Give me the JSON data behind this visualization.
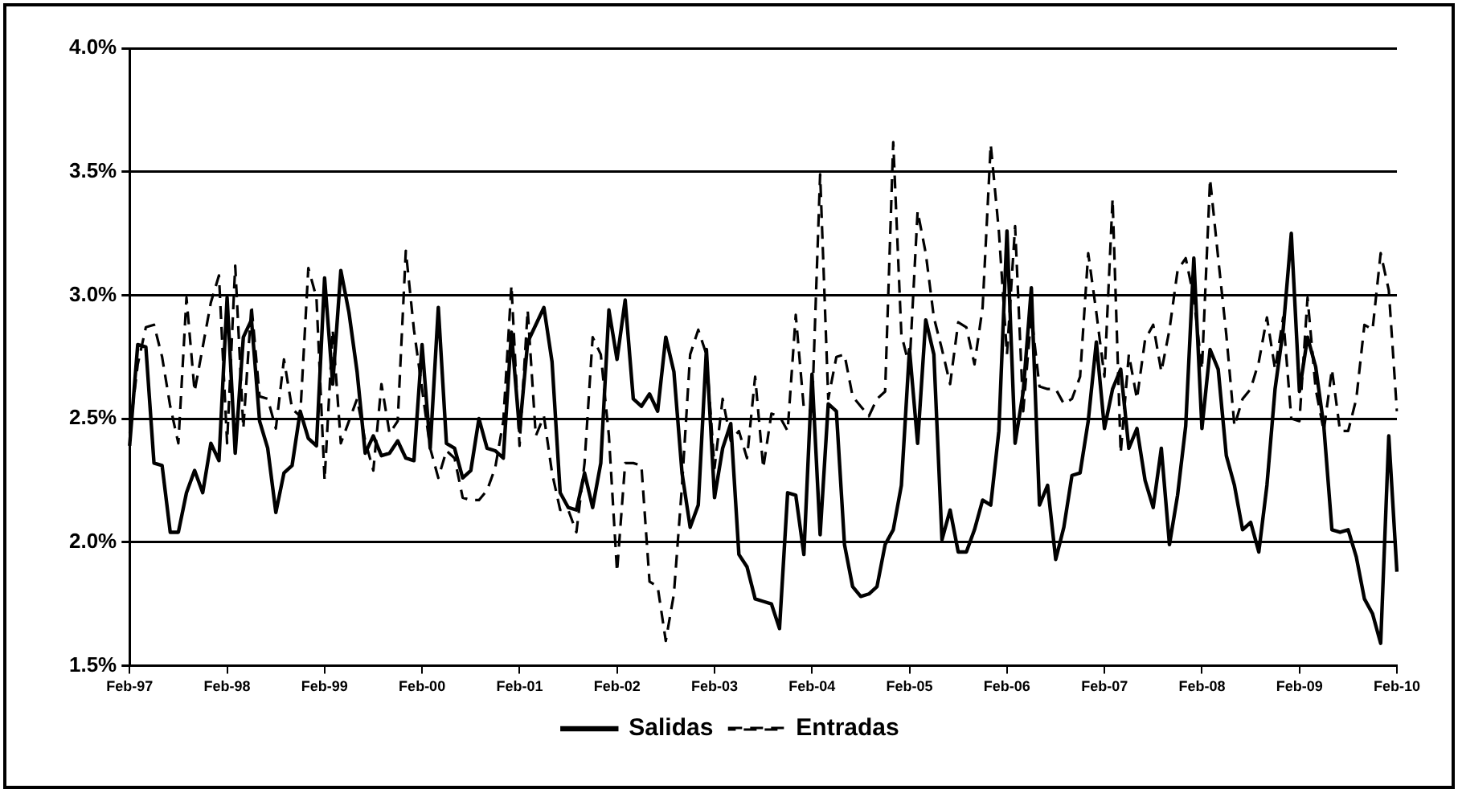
{
  "chart_data": {
    "type": "line",
    "categories": [
      "Feb-97",
      null,
      null,
      null,
      null,
      null,
      null,
      null,
      null,
      null,
      null,
      null,
      "Feb-98",
      null,
      null,
      null,
      null,
      null,
      null,
      null,
      null,
      null,
      null,
      null,
      "Feb-99",
      null,
      null,
      null,
      null,
      null,
      null,
      null,
      null,
      null,
      null,
      null,
      "Feb-00",
      null,
      null,
      null,
      null,
      null,
      null,
      null,
      null,
      null,
      null,
      null,
      "Feb-01",
      null,
      null,
      null,
      null,
      null,
      null,
      null,
      null,
      null,
      null,
      null,
      "Feb-02",
      null,
      null,
      null,
      null,
      null,
      null,
      null,
      null,
      null,
      null,
      null,
      "Feb-03",
      null,
      null,
      null,
      null,
      null,
      null,
      null,
      null,
      null,
      null,
      null,
      "Feb-04",
      null,
      null,
      null,
      null,
      null,
      null,
      null,
      null,
      null,
      null,
      null,
      "Feb-05",
      null,
      null,
      null,
      null,
      null,
      null,
      null,
      null,
      null,
      null,
      null,
      "Feb-06",
      null,
      null,
      null,
      null,
      null,
      null,
      null,
      null,
      null,
      null,
      null,
      "Feb-07",
      null,
      null,
      null,
      null,
      null,
      null,
      null,
      null,
      null,
      null,
      null,
      "Feb-08",
      null,
      null,
      null,
      null,
      null,
      null,
      null,
      null,
      null,
      null,
      null,
      "Feb-09",
      null,
      null,
      null,
      null,
      null,
      null,
      null,
      null,
      null,
      null,
      null,
      "Feb-10"
    ],
    "series": [
      {
        "name": "Salidas",
        "color": "#000000",
        "line_style": "solid",
        "values": [
          2.39,
          2.8,
          2.79,
          2.32,
          2.31,
          2.04,
          2.04,
          2.2,
          2.29,
          2.2,
          2.4,
          2.33,
          2.99,
          2.36,
          2.83,
          2.9,
          2.49,
          2.38,
          2.12,
          2.28,
          2.31,
          2.53,
          2.42,
          2.39,
          3.07,
          2.64,
          3.1,
          2.93,
          2.69,
          2.36,
          2.43,
          2.35,
          2.36,
          2.41,
          2.34,
          2.33,
          2.8,
          2.38,
          2.95,
          2.4,
          2.38,
          2.26,
          2.29,
          2.5,
          2.38,
          2.37,
          2.34,
          2.85,
          2.45,
          2.81,
          2.88,
          2.95,
          2.73,
          2.2,
          2.14,
          2.13,
          2.28,
          2.14,
          2.32,
          2.94,
          2.74,
          2.98,
          2.58,
          2.55,
          2.6,
          2.53,
          2.83,
          2.69,
          2.28,
          2.06,
          2.15,
          2.78,
          2.18,
          2.38,
          2.48,
          1.95,
          1.9,
          1.77,
          1.76,
          1.75,
          1.65,
          2.2,
          2.19,
          1.95,
          2.68,
          2.03,
          2.56,
          2.53,
          1.99,
          1.82,
          1.78,
          1.79,
          1.82,
          1.99,
          2.05,
          2.23,
          2.78,
          2.4,
          2.9,
          2.76,
          2.01,
          2.13,
          1.96,
          1.96,
          2.05,
          2.17,
          2.15,
          2.45,
          3.26,
          2.4,
          2.61,
          3.03,
          2.15,
          2.23,
          1.93,
          2.06,
          2.27,
          2.28,
          2.49,
          2.81,
          2.46,
          2.62,
          2.7,
          2.38,
          2.46,
          2.25,
          2.14,
          2.38,
          1.99,
          2.19,
          2.47,
          3.15,
          2.46,
          2.78,
          2.7,
          2.35,
          2.23,
          2.05,
          2.08,
          1.96,
          2.23,
          2.62,
          2.86,
          3.25,
          2.61,
          2.83,
          2.71,
          2.47,
          2.05,
          2.04,
          2.05,
          1.94,
          1.77,
          1.71,
          1.59,
          2.43,
          1.88
        ]
      },
      {
        "name": "Entradas",
        "color": "#000000",
        "line_style": "dashed",
        "values": [
          2.44,
          2.72,
          2.87,
          2.88,
          2.75,
          2.55,
          2.4,
          2.99,
          2.61,
          2.79,
          2.97,
          3.08,
          2.4,
          3.12,
          2.46,
          2.96,
          2.59,
          2.58,
          2.46,
          2.74,
          2.54,
          2.51,
          3.11,
          2.99,
          2.25,
          2.86,
          2.4,
          2.49,
          2.58,
          2.41,
          2.29,
          2.64,
          2.44,
          2.49,
          3.18,
          2.86,
          2.62,
          2.38,
          2.26,
          2.37,
          2.34,
          2.18,
          2.17,
          2.17,
          2.21,
          2.3,
          2.49,
          3.04,
          2.39,
          2.94,
          2.43,
          2.51,
          2.28,
          2.13,
          2.13,
          2.04,
          2.32,
          2.83,
          2.76,
          2.43,
          1.88,
          2.32,
          2.32,
          2.31,
          1.84,
          1.82,
          1.6,
          1.79,
          2.23,
          2.76,
          2.86,
          2.76,
          2.3,
          2.58,
          2.41,
          2.45,
          2.34,
          2.67,
          2.3,
          2.52,
          2.51,
          2.45,
          2.92,
          2.54,
          2.53,
          3.49,
          2.58,
          2.75,
          2.76,
          2.59,
          2.55,
          2.51,
          2.58,
          2.61,
          3.62,
          2.84,
          2.71,
          3.34,
          3.17,
          2.91,
          2.78,
          2.64,
          2.89,
          2.87,
          2.72,
          2.95,
          3.61,
          3.26,
          2.76,
          3.28,
          2.53,
          2.92,
          2.63,
          2.62,
          2.62,
          2.56,
          2.58,
          2.67,
          3.17,
          2.93,
          2.67,
          3.39,
          2.36,
          2.76,
          2.58,
          2.82,
          2.88,
          2.69,
          2.86,
          3.1,
          3.15,
          2.99,
          2.7,
          3.47,
          3.15,
          2.84,
          2.47,
          2.58,
          2.62,
          2.73,
          2.91,
          2.7,
          2.91,
          2.5,
          2.49,
          2.99,
          2.62,
          2.45,
          2.7,
          2.45,
          2.45,
          2.58,
          2.88,
          2.86,
          3.17,
          3.02,
          2.53
        ]
      }
    ],
    "ylim": [
      1.5,
      4.0
    ],
    "yticks": [
      {
        "value": 1.5,
        "label": "1.5%"
      },
      {
        "value": 2.0,
        "label": "2.0%"
      },
      {
        "value": 2.5,
        "label": "2.5%"
      },
      {
        "value": 3.0,
        "label": "3.0%"
      },
      {
        "value": 3.5,
        "label": "3.5%"
      },
      {
        "value": 4.0,
        "label": "4.0%"
      }
    ],
    "grid": "y",
    "legend": "bottom",
    "marker": "none"
  }
}
